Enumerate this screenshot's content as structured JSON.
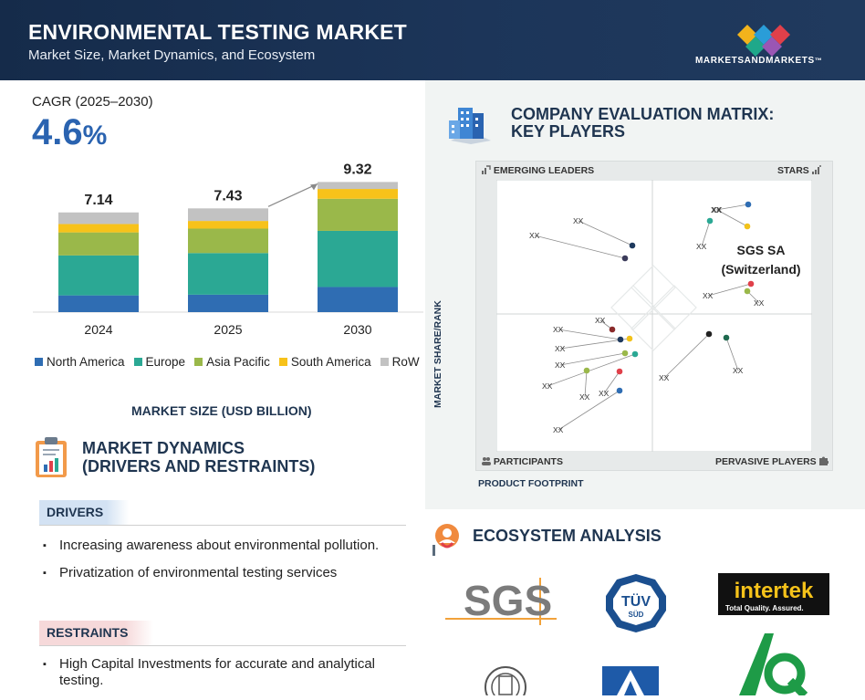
{
  "header": {
    "title": "ENVIRONMENTAL TESTING MARKET",
    "subtitle": "Market Size, Market Dynamics, and Ecosystem",
    "brand_main": "MARKETSANDMARKETS",
    "brand_tm": "™"
  },
  "cagr": {
    "label": "CAGR (2025–2030)",
    "value": "4.6",
    "unit": "%"
  },
  "chart_data": {
    "type": "bar",
    "stacked": true,
    "categories": [
      "2024",
      "2025",
      "2030"
    ],
    "totals": [
      7.14,
      7.43,
      9.32
    ],
    "total_labels": [
      "7.14",
      "7.43",
      "9.32"
    ],
    "series": [
      {
        "name": "North America",
        "color": "#2f6db3",
        "values": [
          1.2,
          1.25,
          1.8
        ]
      },
      {
        "name": "Europe",
        "color": "#2ba894",
        "values": [
          2.86,
          2.98,
          4.02
        ]
      },
      {
        "name": "Asia Pacific",
        "color": "#9ab84a",
        "values": [
          1.65,
          1.75,
          2.3
        ]
      },
      {
        "name": "South America",
        "color": "#f7c21a",
        "values": [
          0.6,
          0.55,
          0.7
        ]
      },
      {
        "name": "RoW",
        "color": "#c2c2c2",
        "values": [
          0.83,
          0.9,
          0.5
        ]
      }
    ],
    "xlabel": "MARKET SIZE (USD BILLION)",
    "ylabel": "",
    "ylim": [
      0,
      10
    ],
    "grid": false,
    "legend": "bottom"
  },
  "dynamics": {
    "title_line1": "MARKET DYNAMICS",
    "title_line2": "(DRIVERS AND RESTRAINTS)",
    "drivers_label": "DRIVERS",
    "drivers": [
      "Increasing awareness about environmental pollution.",
      "Privatization of environmental testing services"
    ],
    "restraints_label": "RESTRAINTS",
    "restraints": [
      "High Capital Investments for accurate and analytical testing."
    ]
  },
  "matrix": {
    "title_line1": "COMPANY EVALUATION MATRIX:",
    "title_line2": "KEY PLAYERS",
    "q_emerging": "EMERGING LEADERS",
    "q_stars": "STARS",
    "q_participants": "PARTICIPANTS",
    "q_pervasive": "PERVASIVE PLAYERS",
    "y_axis": "MARKET SHARE/RANK",
    "x_axis": "PRODUCT FOOTPRINT",
    "highlight_line1": "SGS SA",
    "highlight_line2": "(Switzerland)",
    "placeholder": "XX"
  },
  "ecosystem": {
    "title": "ECOSYSTEM ANALYSIS",
    "logos": {
      "sgs": "SGS",
      "tuv_main": "TÜV",
      "tuv_sub": "SÜD",
      "intertek_main": "intertek",
      "intertek_tag": "Total Quality. Assured."
    }
  }
}
